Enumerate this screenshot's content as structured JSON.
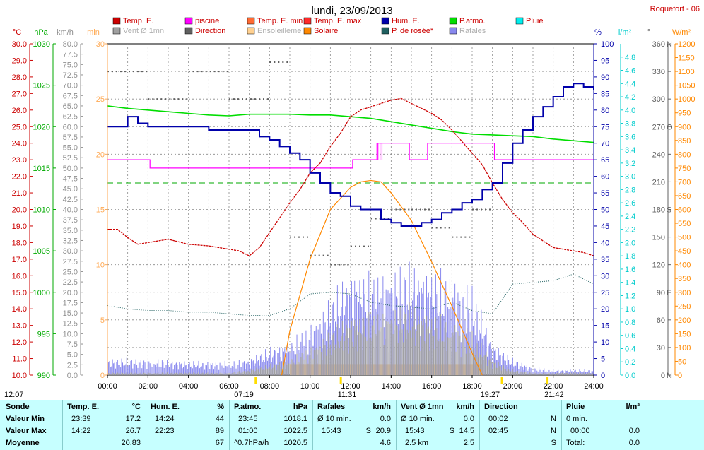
{
  "title": "lundi, 23/09/2013",
  "station": "Roquefort - 06",
  "axis_units": {
    "temp": "°C",
    "press": "hPa",
    "wind": "km/h",
    "min": "min",
    "hum": "%",
    "rain": "l/m²",
    "dir": "°",
    "solar": "W/m²"
  },
  "legend": [
    {
      "label": "Temp. E.",
      "color": "#cc0000",
      "faded": false
    },
    {
      "label": "piscine",
      "color": "#ff00ff",
      "faded": false
    },
    {
      "label": "Temp. E. min",
      "color": "#ff6a33",
      "faded": false
    },
    {
      "label": "Temp. E. max",
      "color": "#ff2a2a",
      "faded": false
    },
    {
      "label": "Hum. E.",
      "color": "#0000aa",
      "faded": false
    },
    {
      "label": "P.atmo.",
      "color": "#00dd00",
      "faded": false
    },
    {
      "label": "Pluie",
      "color": "#00eeee",
      "faded": false
    },
    {
      "label": "Vent Ø 1mn",
      "color": "#a0a0a0",
      "faded": true
    },
    {
      "label": "Direction",
      "color": "#606060",
      "faded": false
    },
    {
      "label": "Ensoleilleme",
      "color": "#ffd090",
      "faded": true
    },
    {
      "label": "Solaire",
      "color": "#ff8800",
      "faded": false
    },
    {
      "label": "P. de rosée*",
      "color": "#206060",
      "faded": false
    },
    {
      "label": "Rafales",
      "color": "#8888ee",
      "faded": true
    }
  ],
  "chart_data": {
    "type": "line",
    "title": "lundi, 23/09/2013",
    "x_unit": "hours",
    "x_range": [
      0,
      24
    ],
    "x_tick_labels": [
      "00:00",
      "02:00",
      "04:00",
      "06:00",
      "08:00",
      "10:00",
      "12:00",
      "14:00",
      "16:00",
      "18:00",
      "20:00",
      "22:00",
      "24:00"
    ],
    "axes": {
      "temp_c": {
        "range": [
          10,
          30
        ],
        "ticks": [
          "10.0",
          "11.0",
          "12.0",
          "13.0",
          "14.0",
          "15.0",
          "16.0",
          "17.0",
          "18.0",
          "19.0",
          "20.0",
          "21.0",
          "22.0",
          "23.0",
          "24.0",
          "25.0",
          "26.0",
          "27.0",
          "28.0",
          "29.0",
          "30.0"
        ]
      },
      "pressure_hpa": {
        "range": [
          990,
          1030
        ],
        "ticks": [
          "990",
          "995",
          "1000",
          "1005",
          "1010",
          "1015",
          "1020",
          "1025",
          "1030"
        ]
      },
      "wind_kmh": {
        "range": [
          0,
          80
        ],
        "ticks": [
          "0.0",
          "2.5",
          "5.0",
          "7.5",
          "10.0",
          "12.5",
          "15.0",
          "17.5",
          "20.0",
          "22.5",
          "25.0",
          "27.5",
          "30.0",
          "32.5",
          "35.0",
          "37.5",
          "40.0",
          "42.5",
          "45.0",
          "47.5",
          "50.0",
          "52.5",
          "55.0",
          "57.5",
          "60.0",
          "62.5",
          "65.0",
          "67.5",
          "70.0",
          "72.5",
          "75.0",
          "77.5",
          "80.0"
        ]
      },
      "minutes": {
        "range": [
          0,
          30
        ],
        "ticks": [
          "0",
          "5",
          "10",
          "15",
          "20",
          "25",
          "30"
        ]
      },
      "humidity_pct": {
        "range": [
          0,
          100
        ],
        "ticks": [
          "0",
          "5",
          "10",
          "15",
          "20",
          "25",
          "30",
          "35",
          "40",
          "45",
          "50",
          "55",
          "60",
          "65",
          "70",
          "75",
          "80",
          "85",
          "90",
          "95",
          "100"
        ]
      },
      "rain_lm2": {
        "range": [
          0,
          5
        ],
        "ticks": [
          "0.0",
          "0.2",
          "0.4",
          "0.6",
          "0.8",
          "1.0",
          "1.2",
          "1.4",
          "1.6",
          "1.8",
          "2.0",
          "2.2",
          "2.4",
          "2.6",
          "2.8",
          "3.0",
          "3.2",
          "3.4",
          "3.6",
          "3.8",
          "4.0",
          "4.2",
          "4.4",
          "4.6",
          "4.8"
        ]
      },
      "direction_deg": {
        "range": [
          0,
          360
        ],
        "ticks": [
          "0",
          "30",
          "60",
          "90",
          "120",
          "150",
          "180",
          "210",
          "240",
          "270",
          "300",
          "330",
          "360"
        ],
        "cardinals": {
          "0": "N",
          "90": "E",
          "180": "S",
          "270": "O",
          "360": "N"
        }
      },
      "solar_wm2": {
        "range": [
          0,
          1200
        ],
        "ticks": [
          "0",
          "50",
          "100",
          "150",
          "200",
          "250",
          "300",
          "350",
          "400",
          "450",
          "500",
          "550",
          "600",
          "650",
          "700",
          "750",
          "800",
          "850",
          "900",
          "950",
          "1000",
          "1050",
          "1100",
          "1150",
          "1200"
        ]
      }
    },
    "series": [
      {
        "name": "Temp. E.",
        "axis": "temp_c",
        "color": "#cc0000",
        "x": [
          0,
          0.5,
          1,
          1.5,
          2,
          3,
          4,
          5,
          6,
          6.5,
          7,
          7.5,
          8,
          8.5,
          9,
          9.5,
          10,
          10.5,
          11,
          11.5,
          12,
          12.5,
          13,
          13.5,
          14,
          14.5,
          15,
          15.5,
          16,
          16.5,
          17,
          17.5,
          18,
          18.5,
          19,
          19.5,
          20,
          20.5,
          21,
          21.5,
          22,
          22.5,
          23,
          23.5,
          24
        ],
        "y": [
          18.8,
          18.8,
          18.3,
          17.9,
          18.0,
          18.2,
          17.9,
          17.8,
          17.6,
          17.5,
          17.2,
          17.7,
          18.6,
          19.5,
          20.4,
          21.2,
          22.2,
          22.8,
          23.8,
          24.6,
          25.6,
          26.0,
          26.2,
          26.4,
          26.6,
          26.7,
          26.4,
          26.1,
          25.8,
          25.4,
          24.8,
          24.1,
          23.4,
          22.7,
          21.6,
          20.6,
          19.8,
          19.2,
          18.5,
          18.1,
          17.7,
          17.6,
          17.5,
          17.4,
          17.2
        ]
      },
      {
        "name": "piscine",
        "axis": "temp_c",
        "color": "#ff00ff",
        "x": [
          0,
          2.1,
          2.1,
          12.1,
          12.1,
          13.3,
          13.3,
          13.35,
          13.35,
          13.45,
          13.45,
          13.55,
          13.55,
          14.9,
          14.9,
          15.8,
          15.8,
          19.1,
          19.1,
          24
        ],
        "y": [
          23,
          23,
          22.5,
          22.5,
          23,
          23,
          24,
          23,
          24,
          23,
          24,
          23,
          24,
          24,
          23,
          23,
          24,
          24,
          23,
          23
        ]
      },
      {
        "name": "Hum. E.",
        "axis": "humidity_pct",
        "color": "#0000aa",
        "x": [
          0,
          0.5,
          1,
          1.5,
          2,
          3,
          4,
          5,
          6,
          7,
          7.5,
          8,
          8.5,
          9,
          9.5,
          10,
          10.5,
          11,
          11.5,
          12,
          12.5,
          13,
          13.5,
          14,
          14.5,
          15,
          15.5,
          16,
          16.5,
          17,
          17.5,
          18,
          18.5,
          19,
          19.5,
          20,
          20.5,
          21,
          21.5,
          22,
          22.5,
          23,
          23.5,
          24
        ],
        "y": [
          75,
          75,
          78,
          76,
          75,
          75,
          75,
          74,
          74,
          74,
          72,
          71,
          69,
          67,
          65,
          61,
          58,
          55,
          54,
          51,
          50,
          50,
          47,
          46,
          45,
          45,
          46,
          47,
          49,
          50,
          52,
          53,
          56,
          58,
          64,
          70,
          74,
          78,
          81,
          84,
          87,
          88,
          87,
          86
        ]
      },
      {
        "name": "P.atmo.",
        "axis": "pressure_hpa",
        "color": "#00dd00",
        "x": [
          0,
          1,
          2,
          3,
          4,
          5,
          6,
          7,
          8,
          9,
          10,
          11,
          12,
          13,
          14,
          15,
          16,
          17,
          18,
          19,
          20,
          21,
          22,
          23,
          24
        ],
        "y": [
          1022.5,
          1022.2,
          1022.0,
          1021.8,
          1021.6,
          1021.4,
          1021.3,
          1021.5,
          1021.5,
          1021.5,
          1021.4,
          1021.4,
          1021.2,
          1021.0,
          1020.6,
          1020.2,
          1019.8,
          1019.4,
          1019.1,
          1019.0,
          1018.9,
          1018.8,
          1018.5,
          1018.3,
          1018.1
        ]
      },
      {
        "name": "P. de rosée*",
        "axis": "temp_c",
        "color": "#206060",
        "x": [
          0,
          1,
          2,
          3,
          4,
          5,
          6,
          7,
          8,
          9,
          10,
          11,
          12,
          13,
          14,
          15,
          16,
          17,
          18,
          19,
          20,
          21,
          22,
          23,
          24
        ],
        "y": [
          14.2,
          14.0,
          13.9,
          13.9,
          13.8,
          13.8,
          13.7,
          13.6,
          13.6,
          14.0,
          14.9,
          15.0,
          14.9,
          14.4,
          14.2,
          14.1,
          14.0,
          14.4,
          13.9,
          13.7,
          15.5,
          15.6,
          15.7,
          16.1,
          15.5
        ]
      },
      {
        "name": "Solaire",
        "axis": "solar_wm2",
        "color": "#ff8800",
        "x": [
          8.6,
          9,
          10,
          11,
          12,
          12.5,
          13,
          13.5,
          14,
          15,
          16,
          17,
          18,
          18.5
        ],
        "y": [
          0,
          160,
          420,
          600,
          680,
          700,
          705,
          700,
          660,
          560,
          410,
          250,
          80,
          0
        ]
      },
      {
        "name": "Rafales",
        "axis": "wind_kmh",
        "color": "#8888ee",
        "x": [
          0,
          2,
          4,
          6,
          7,
          8,
          9,
          10,
          11,
          12,
          13,
          14,
          15,
          16,
          17,
          18,
          19,
          20,
          21,
          22,
          23,
          24
        ],
        "y": [
          3,
          3,
          2.5,
          2.5,
          3,
          5,
          6,
          9,
          14,
          19,
          18,
          19,
          20,
          19,
          18,
          16,
          6,
          3,
          1.5,
          1,
          1,
          1
        ]
      },
      {
        "name": "Vent Ø 1mn",
        "axis": "wind_kmh",
        "color": "#a0a0a0",
        "x": [
          0,
          2,
          4,
          6,
          7,
          8,
          9,
          10,
          11,
          12,
          13,
          14,
          15,
          16,
          17,
          18,
          19,
          20,
          21,
          22,
          23,
          24
        ],
        "y": [
          0.5,
          0.5,
          0.5,
          0.5,
          1,
          2,
          3,
          5,
          8,
          11,
          11,
          12,
          13,
          11,
          10,
          8,
          3,
          1,
          0.5,
          0.5,
          0.5,
          0.5
        ]
      },
      {
        "name": "Direction",
        "axis": "direction_deg",
        "color": "#606060",
        "x": [
          0,
          2,
          4,
          6,
          8,
          9,
          10,
          11,
          12,
          13,
          14,
          15,
          16,
          17,
          18
        ],
        "y": [
          330,
          300,
          330,
          300,
          340,
          150,
          130,
          120,
          140,
          170,
          180,
          180,
          160,
          150,
          180
        ]
      },
      {
        "name": "Ensoleilleme",
        "axis": "minutes",
        "color": "#ffd090",
        "x": [
          9,
          18.5
        ],
        "y": [
          1,
          1
        ]
      }
    ],
    "reference_lines": [
      {
        "axis": "temp_c",
        "value": 21.6,
        "style": "dashed",
        "color": "#00aa00"
      }
    ]
  },
  "time_markers": {
    "left": "12:07",
    "sunrise": "07:19",
    "noon": "11:31",
    "sunset": "19:27",
    "right": "21:42"
  },
  "summary": {
    "row_labels": [
      "Sonde",
      "Valeur Min",
      "Valeur Max",
      "Moyenne"
    ],
    "temp": {
      "title": "Temp. E.",
      "unit": "°C",
      "min_time": "23:39",
      "min": "17.2",
      "max_time": "14:22",
      "max": "26.7",
      "avg": "20.83"
    },
    "hum": {
      "title": "Hum. E.",
      "unit": "%",
      "min_time": "14:24",
      "min": "44",
      "max_time": "22:23",
      "max": "89",
      "avg": "67"
    },
    "press": {
      "title": "P.atmo.",
      "unit": "hPa",
      "min_time": "23:45",
      "min": "1018.1",
      "max_time": "01:00",
      "max": "1022.5",
      "avg_label": "^0.7hPa/h",
      "avg": "1020.5"
    },
    "gust": {
      "title": "Rafales",
      "unit": "km/h",
      "min_label": "Ø 10 min.",
      "min": "0.0",
      "max_time": "15:43",
      "max_dir": "S",
      "max": "20.9",
      "avg": "4.6"
    },
    "wind": {
      "title": "Vent Ø 1mn",
      "unit": "km/h",
      "min_label": "Ø 10 min.",
      "min": "0.0",
      "max_time": "15:43",
      "max_dir": "S",
      "max": "14.5",
      "avg_label": "2.5 km",
      "avg": "2.5"
    },
    "dir": {
      "title": "Direction",
      "min_time": "00:02",
      "min": "N",
      "max_time": "02:45",
      "max": "N",
      "avg": "S"
    },
    "rain": {
      "title": "Pluie",
      "unit": "l/m²",
      "min_label": "0 min.",
      "max_time": "00:00",
      "max": "0.0",
      "avg_label": "Total:",
      "avg": "0.0"
    }
  }
}
